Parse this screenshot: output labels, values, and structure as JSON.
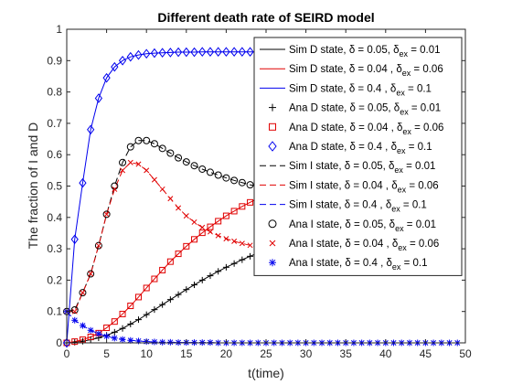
{
  "chart_data": {
    "type": "line",
    "title": "Different death rate of SEIRD model",
    "xlabel": "t(time)",
    "ylabel": "The fraction of I and D",
    "xlim": [
      0,
      50
    ],
    "ylim": [
      0,
      1
    ],
    "xticks": [
      0,
      5,
      10,
      15,
      20,
      25,
      30,
      35,
      40,
      45,
      50
    ],
    "yticks": [
      0,
      0.1,
      0.2,
      0.3,
      0.4,
      0.5,
      0.6,
      0.7,
      0.8,
      0.9,
      1
    ],
    "grid": false,
    "legend_position": "top-right",
    "colors": {
      "black": "#000000",
      "red": "#e00000",
      "blue": "#0000ee"
    },
    "x": [
      0,
      1,
      2,
      3,
      4,
      5,
      6,
      7,
      8,
      9,
      10,
      11,
      12,
      13,
      14,
      15,
      16,
      17,
      18,
      19,
      20,
      21,
      22,
      23,
      24,
      25,
      26,
      27,
      28,
      29,
      30,
      31,
      32,
      33,
      34,
      35,
      36,
      37,
      38,
      39,
      40,
      41,
      42,
      43,
      44,
      45,
      46,
      47,
      48,
      49
    ],
    "series": [
      {
        "legend_main": "Sim D state, ",
        "delta_text": " = 0.05, ",
        "dex_text": " = 0.01",
        "color": "#000000",
        "style": "solid",
        "marker": null,
        "values": [
          0,
          0.002,
          0.005,
          0.01,
          0.016,
          0.024,
          0.034,
          0.046,
          0.06,
          0.074,
          0.09,
          0.106,
          0.122,
          0.138,
          0.154,
          0.17,
          0.185,
          0.2,
          0.214,
          0.228,
          0.241,
          0.253,
          0.265,
          0.276,
          0.287,
          0.297,
          0.306,
          0.315,
          0.323,
          0.331,
          0.338,
          0.345,
          0.352,
          0.358,
          0.364,
          0.369,
          0.374,
          0.379,
          0.384,
          0.388,
          0.392,
          0.396,
          0.4,
          0.404,
          0.408,
          0.412,
          0.416,
          0.42,
          0.424,
          0.428
        ]
      },
      {
        "legend_main": "Sim D state, ",
        "delta_text": " = 0.04 , ",
        "dex_text": " = 0.06",
        "color": "#e00000",
        "style": "solid",
        "marker": null,
        "values": [
          0,
          0.004,
          0.01,
          0.019,
          0.031,
          0.048,
          0.068,
          0.092,
          0.118,
          0.146,
          0.175,
          0.204,
          0.232,
          0.259,
          0.284,
          0.308,
          0.33,
          0.351,
          0.37,
          0.388,
          0.405,
          0.42,
          0.435,
          0.448,
          0.461,
          0.473,
          0.484,
          0.494,
          0.504,
          0.513,
          0.522,
          0.53,
          0.538,
          0.545,
          0.552,
          0.558,
          0.564,
          0.57,
          0.575,
          0.58,
          0.585,
          0.589,
          0.593,
          0.597,
          0.601,
          0.605,
          0.608,
          0.611,
          0.614,
          0.617
        ]
      },
      {
        "legend_main": "Sim D state, ",
        "delta_text": " = 0.4 , ",
        "dex_text": " = 0.1",
        "color": "#0000ee",
        "style": "solid",
        "marker": null,
        "values": [
          0,
          0.33,
          0.51,
          0.68,
          0.78,
          0.845,
          0.88,
          0.9,
          0.912,
          0.918,
          0.922,
          0.924,
          0.925,
          0.926,
          0.927,
          0.927,
          0.927,
          0.928,
          0.928,
          0.928,
          0.928,
          0.928,
          0.928,
          0.928,
          0.928,
          0.928,
          0.928,
          0.928,
          0.928,
          0.928,
          0.928,
          0.928,
          0.928,
          0.928,
          0.928,
          0.928,
          0.928,
          0.928,
          0.928,
          0.928,
          0.928,
          0.928,
          0.928,
          0.928,
          0.928,
          0.928,
          0.928,
          0.928,
          0.928,
          0.928
        ]
      },
      {
        "legend_main": "Ana D state, ",
        "delta_text": " = 0.05, ",
        "dex_text": " = 0.01",
        "color": "#000000",
        "style": "none",
        "marker": "plus",
        "values": [
          0,
          0.002,
          0.005,
          0.01,
          0.016,
          0.024,
          0.034,
          0.046,
          0.06,
          0.074,
          0.09,
          0.106,
          0.122,
          0.138,
          0.154,
          0.17,
          0.185,
          0.2,
          0.214,
          0.228,
          0.241,
          0.253,
          0.265,
          0.276,
          0.287,
          0.297,
          0.306,
          0.315,
          0.323,
          0.331,
          0.338,
          0.345,
          0.352,
          0.358,
          0.364,
          0.369,
          0.374,
          0.379,
          0.384,
          0.388,
          0.392,
          0.396,
          0.4,
          0.404,
          0.408,
          0.412,
          0.416,
          0.42,
          0.424,
          0.445
        ]
      },
      {
        "legend_main": "Ana D state, ",
        "delta_text": " = 0.04 , ",
        "dex_text": " = 0.06",
        "color": "#e00000",
        "style": "none",
        "marker": "square",
        "values": [
          0,
          0.004,
          0.01,
          0.019,
          0.031,
          0.048,
          0.068,
          0.092,
          0.118,
          0.146,
          0.175,
          0.204,
          0.232,
          0.259,
          0.284,
          0.308,
          0.33,
          0.351,
          0.37,
          0.388,
          0.405,
          0.42,
          0.435,
          0.448,
          0.461,
          0.473,
          0.484,
          0.494,
          0.504,
          0.513,
          0.522,
          0.53,
          0.538,
          0.545,
          0.552,
          0.558,
          0.564,
          0.57,
          0.575,
          0.58,
          0.585,
          0.589,
          0.593,
          0.597,
          0.601,
          0.605,
          0.608,
          0.611,
          0.614,
          0.585
        ]
      },
      {
        "legend_main": "Ana D state, ",
        "delta_text": " = 0.4 , ",
        "dex_text": " = 0.1",
        "color": "#0000ee",
        "style": "none",
        "marker": "diamond",
        "values": [
          0,
          0.33,
          0.51,
          0.68,
          0.78,
          0.845,
          0.88,
          0.9,
          0.912,
          0.918,
          0.922,
          0.924,
          0.925,
          0.926,
          0.927,
          0.927,
          0.927,
          0.928,
          0.928,
          0.928,
          0.928,
          0.928,
          0.928,
          0.928,
          0.928,
          0.928,
          0.928,
          0.928,
          0.928,
          0.928,
          0.928,
          0.928,
          0.928,
          0.928,
          0.928,
          0.928,
          0.928,
          0.928,
          0.928,
          0.928,
          0.928,
          0.928,
          0.928,
          0.928,
          0.928,
          0.928,
          0.928,
          0.928,
          0.928,
          0.925
        ]
      },
      {
        "legend_main": "Sim I state, ",
        "delta_text": " = 0.05, ",
        "dex_text": " = 0.01",
        "color": "#000000",
        "style": "dashed",
        "marker": null,
        "values": [
          0.1,
          0.105,
          0.16,
          0.22,
          0.31,
          0.41,
          0.5,
          0.575,
          0.625,
          0.645,
          0.645,
          0.635,
          0.62,
          0.605,
          0.59,
          0.577,
          0.565,
          0.554,
          0.544,
          0.535,
          0.526,
          0.518,
          0.511,
          0.504,
          0.498,
          0.492,
          0.487,
          0.482,
          0.477,
          0.473,
          0.469,
          0.465,
          0.461,
          0.458,
          0.455,
          0.452,
          0.449,
          0.446,
          0.443,
          0.441,
          0.438,
          0.436,
          0.434,
          0.432,
          0.43,
          0.428,
          0.426,
          0.424,
          0.422,
          0.42
        ]
      },
      {
        "legend_main": "Sim I state, ",
        "delta_text": " = 0.04 , ",
        "dex_text": " = 0.06",
        "color": "#e00000",
        "style": "dashed",
        "marker": null,
        "values": [
          0.1,
          0.1,
          0.16,
          0.22,
          0.31,
          0.41,
          0.49,
          0.55,
          0.575,
          0.57,
          0.55,
          0.52,
          0.49,
          0.46,
          0.43,
          0.405,
          0.385,
          0.368,
          0.354,
          0.342,
          0.332,
          0.324,
          0.317,
          0.311,
          0.306,
          0.301,
          0.297,
          0.294,
          0.291,
          0.288,
          0.285,
          0.283,
          0.281,
          0.279,
          0.277,
          0.275,
          0.273,
          0.271,
          0.269,
          0.267,
          0.265,
          0.263,
          0.261,
          0.259,
          0.257,
          0.255,
          0.253,
          0.251,
          0.249,
          0.247
        ]
      },
      {
        "legend_main": "Sim I state, ",
        "delta_text": " = 0.4 , ",
        "dex_text": " = 0.1",
        "color": "#0000ee",
        "style": "dashed",
        "marker": null,
        "values": [
          0.1,
          0.072,
          0.055,
          0.04,
          0.029,
          0.021,
          0.015,
          0.011,
          0.008,
          0.006,
          0.004,
          0.003,
          0.002,
          0.002,
          0.001,
          0.001,
          0.001,
          0.001,
          0.001,
          0,
          0,
          0,
          0,
          0,
          0,
          0,
          0,
          0,
          0,
          0,
          0,
          0,
          0,
          0,
          0,
          0,
          0,
          0,
          0,
          0,
          0,
          0,
          0,
          0,
          0,
          0,
          0,
          0,
          0,
          0
        ]
      },
      {
        "legend_main": "Ana I state, ",
        "delta_text": " = 0.05, ",
        "dex_text": " = 0.01",
        "color": "#000000",
        "style": "none",
        "marker": "circle",
        "values": [
          0.1,
          0.105,
          0.16,
          0.22,
          0.31,
          0.41,
          0.5,
          0.575,
          0.625,
          0.645,
          0.645,
          0.635,
          0.62,
          0.605,
          0.59,
          0.577,
          0.565,
          0.554,
          0.544,
          0.535,
          0.526,
          0.518,
          0.511,
          0.504,
          0.498,
          0.492,
          0.487,
          0.482,
          0.477,
          0.473,
          0.469,
          0.465,
          0.461,
          0.458,
          0.455,
          0.452,
          0.449,
          0.446,
          0.443,
          0.441,
          0.438,
          0.436,
          0.434,
          0.432,
          0.43,
          0.428,
          0.426,
          0.424,
          0.422,
          0.395
        ]
      },
      {
        "legend_main": "Ana I state, ",
        "delta_text": " = 0.04 , ",
        "dex_text": " = 0.06",
        "color": "#e00000",
        "style": "none",
        "marker": "x",
        "values": [
          0.1,
          0.1,
          0.16,
          0.22,
          0.31,
          0.41,
          0.49,
          0.55,
          0.575,
          0.57,
          0.55,
          0.52,
          0.49,
          0.46,
          0.43,
          0.405,
          0.385,
          0.368,
          0.354,
          0.342,
          0.332,
          0.324,
          0.317,
          0.311,
          0.306,
          0.301,
          0.297,
          0.294,
          0.291,
          0.288,
          0.285,
          0.283,
          0.281,
          0.279,
          0.277,
          0.275,
          0.273,
          0.271,
          0.269,
          0.267,
          0.265,
          0.263,
          0.261,
          0.259,
          0.257,
          0.255,
          0.253,
          0.251,
          0.249,
          0.23
        ]
      },
      {
        "legend_main": "Ana I state, ",
        "delta_text": " = 0.4 , ",
        "dex_text": " = 0.1",
        "color": "#0000ee",
        "style": "none",
        "marker": "star",
        "values": [
          0.1,
          0.072,
          0.055,
          0.04,
          0.029,
          0.021,
          0.015,
          0.011,
          0.008,
          0.006,
          0.004,
          0.003,
          0.002,
          0.002,
          0.001,
          0.001,
          0.001,
          0.001,
          0.001,
          0,
          0,
          0,
          0,
          0,
          0,
          0,
          0,
          0,
          0,
          0,
          0,
          0,
          0,
          0,
          0,
          0,
          0,
          0,
          0,
          0,
          0,
          0,
          0,
          0,
          0,
          0,
          0,
          0,
          0,
          0
        ]
      }
    ],
    "legend_symbols": {
      "delta": "δ",
      "ex_subscript": "ex"
    }
  }
}
